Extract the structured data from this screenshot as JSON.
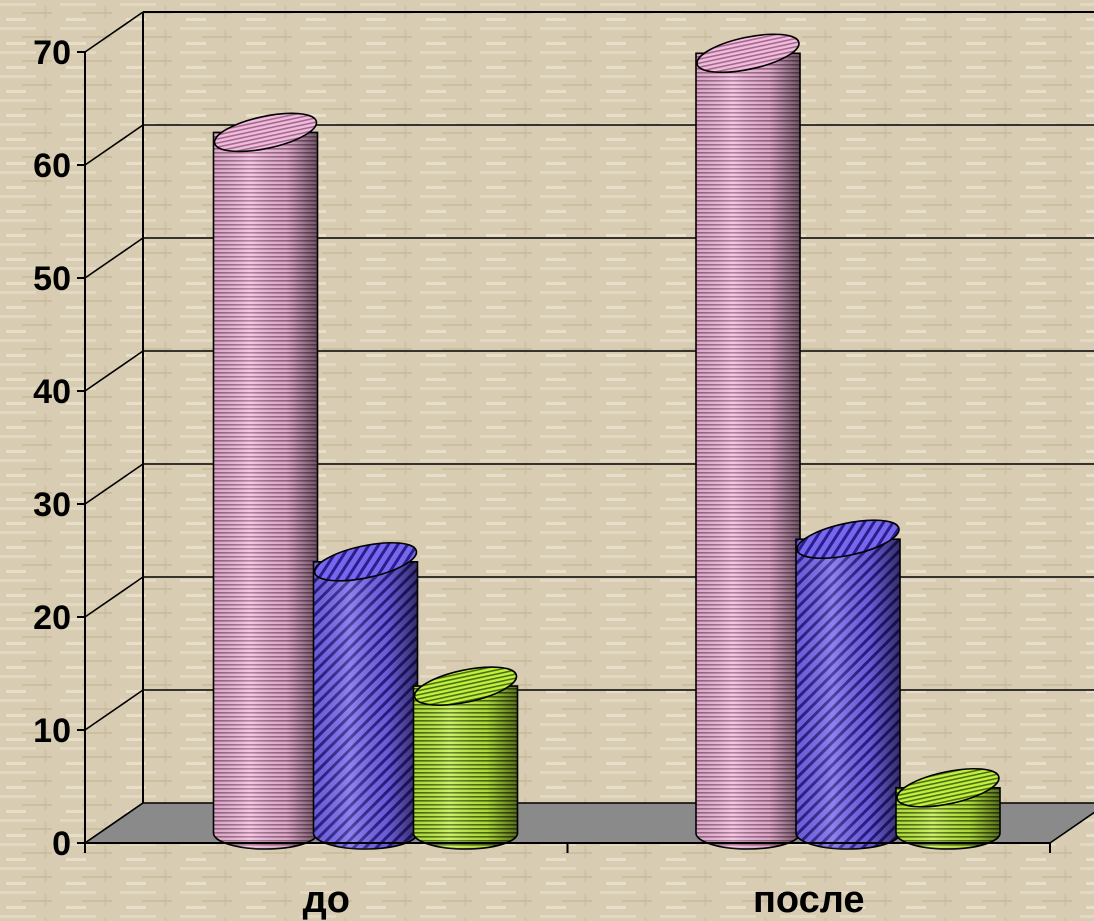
{
  "chart_data": {
    "type": "bar",
    "style": "3d-cylinder",
    "categories": [
      "до",
      "после"
    ],
    "series": [
      {
        "values": [
          62,
          69
        ],
        "color": "#e8a8d0"
      },
      {
        "values": [
          24,
          26
        ],
        "color": "#6655dd"
      },
      {
        "values": [
          13,
          4
        ],
        "color": "#a8e03c"
      }
    ],
    "y_ticks": [
      "0",
      "10",
      "20",
      "30",
      "40",
      "50",
      "60",
      "70"
    ],
    "ylim": [
      0,
      70
    ],
    "grid": true,
    "legend": "none"
  }
}
